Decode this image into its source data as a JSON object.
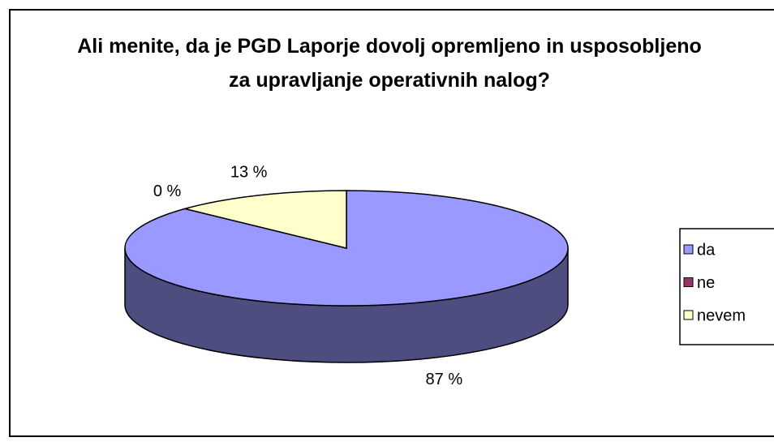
{
  "chart_data": {
    "type": "pie",
    "title": "Ali menite, da je PGD Laporje dovolj opremljeno in usposobljeno za upravljanje operativnih nalog?",
    "categories": [
      "da",
      "ne",
      "nevem"
    ],
    "values": [
      87,
      0,
      13
    ],
    "value_labels": [
      "87 %",
      "0 %",
      "13 %"
    ],
    "colors": [
      "#9999ff",
      "#993366",
      "#ffffcc"
    ],
    "legend": "right"
  }
}
